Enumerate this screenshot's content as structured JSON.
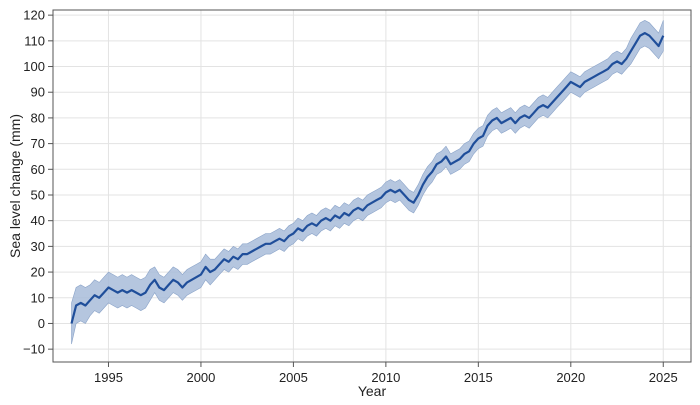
{
  "chart_data": {
    "type": "line",
    "title": "",
    "xlabel": "Year",
    "ylabel": "Sea level change (mm)",
    "xlim": [
      1992.0,
      2026.5
    ],
    "ylim": [
      -15,
      122
    ],
    "xticks": [
      1995,
      2000,
      2005,
      2010,
      2015,
      2020,
      2025
    ],
    "yticks": [
      -10,
      0,
      10,
      20,
      30,
      40,
      50,
      60,
      70,
      80,
      90,
      100,
      110,
      120
    ],
    "grid": true,
    "legend": "none",
    "colors": {
      "line": "#1f4e9a",
      "band": "#a8bcd9",
      "band_edge": "#8aa3c8",
      "grid": "#e3e3e3",
      "frame": "#555555"
    },
    "series": [
      {
        "x": [
          1993.0,
          1993.25,
          1993.5,
          1993.75,
          1994.0,
          1994.25,
          1994.5,
          1994.75,
          1995.0,
          1995.25,
          1995.5,
          1995.75,
          1996.0,
          1996.25,
          1996.5,
          1996.75,
          1997.0,
          1997.25,
          1997.5,
          1997.75,
          1998.0,
          1998.25,
          1998.5,
          1998.75,
          1999.0,
          1999.25,
          1999.5,
          1999.75,
          2000.0,
          2000.25,
          2000.5,
          2000.75,
          2001.0,
          2001.25,
          2001.5,
          2001.75,
          2002.0,
          2002.25,
          2002.5,
          2002.75,
          2003.0,
          2003.25,
          2003.5,
          2003.75,
          2004.0,
          2004.25,
          2004.5,
          2004.75,
          2005.0,
          2005.25,
          2005.5,
          2005.75,
          2006.0,
          2006.25,
          2006.5,
          2006.75,
          2007.0,
          2007.25,
          2007.5,
          2007.75,
          2008.0,
          2008.25,
          2008.5,
          2008.75,
          2009.0,
          2009.25,
          2009.5,
          2009.75,
          2010.0,
          2010.25,
          2010.5,
          2010.75,
          2011.0,
          2011.25,
          2011.5,
          2011.75,
          2012.0,
          2012.25,
          2012.5,
          2012.75,
          2013.0,
          2013.25,
          2013.5,
          2013.75,
          2014.0,
          2014.25,
          2014.5,
          2014.75,
          2015.0,
          2015.25,
          2015.5,
          2015.75,
          2016.0,
          2016.25,
          2016.5,
          2016.75,
          2017.0,
          2017.25,
          2017.5,
          2017.75,
          2018.0,
          2018.25,
          2018.5,
          2018.75,
          2019.0,
          2019.25,
          2019.5,
          2019.75,
          2020.0,
          2020.25,
          2020.5,
          2020.75,
          2021.0,
          2021.25,
          2021.5,
          2021.75,
          2022.0,
          2022.25,
          2022.5,
          2022.75,
          2023.0,
          2023.25,
          2023.5,
          2023.75,
          2024.0,
          2024.25,
          2024.5,
          2024.75,
          2025.0
        ],
        "y": [
          0,
          7,
          8,
          7,
          9,
          11,
          10,
          12,
          14,
          13,
          12,
          13,
          12,
          13,
          12,
          11,
          12,
          15,
          17,
          14,
          13,
          15,
          17,
          16,
          14,
          16,
          17,
          18,
          19,
          22,
          20,
          21,
          23,
          25,
          24,
          26,
          25,
          27,
          27,
          28,
          29,
          30,
          31,
          31,
          32,
          33,
          32,
          34,
          35,
          37,
          36,
          38,
          39,
          38,
          40,
          41,
          40,
          42,
          41,
          43,
          42,
          44,
          45,
          44,
          46,
          47,
          48,
          49,
          51,
          52,
          51,
          52,
          50,
          48,
          47,
          50,
          54,
          57,
          59,
          62,
          63,
          65,
          62,
          63,
          64,
          66,
          67,
          70,
          72,
          73,
          77,
          79,
          80,
          78,
          79,
          80,
          78,
          80,
          81,
          80,
          82,
          84,
          85,
          84,
          86,
          88,
          90,
          92,
          94,
          93,
          92,
          94,
          95,
          96,
          97,
          98,
          99,
          101,
          102,
          101,
          103,
          106,
          109,
          112,
          113,
          112,
          110,
          108,
          112
        ],
        "uncertainty": [
          8,
          7,
          7,
          7,
          6,
          6,
          6,
          6,
          6,
          6,
          6,
          6,
          6,
          6,
          6,
          6,
          6,
          6,
          5,
          5,
          5,
          5,
          5,
          5,
          5,
          5,
          5,
          5,
          5,
          5,
          5,
          4,
          4,
          4,
          4,
          4,
          4,
          4,
          4,
          4,
          4,
          4,
          4,
          4,
          4,
          4,
          4,
          4,
          4,
          4,
          4,
          4,
          4,
          4,
          4,
          4,
          4,
          4,
          4,
          4,
          4,
          4,
          4,
          4,
          4,
          4,
          4,
          4,
          4,
          4,
          4,
          4,
          4,
          4,
          4,
          4,
          4,
          4,
          4,
          4,
          4,
          4,
          4,
          4,
          4,
          4,
          4,
          4,
          4,
          4,
          4,
          4,
          4,
          4,
          4,
          4,
          4,
          4,
          4,
          4,
          4,
          4,
          4,
          4,
          4,
          4,
          4,
          4,
          4,
          4,
          4,
          4,
          4,
          4,
          4,
          4,
          4,
          4,
          4,
          4,
          4,
          5,
          5,
          5,
          5,
          5,
          5,
          5,
          6
        ]
      }
    ]
  }
}
